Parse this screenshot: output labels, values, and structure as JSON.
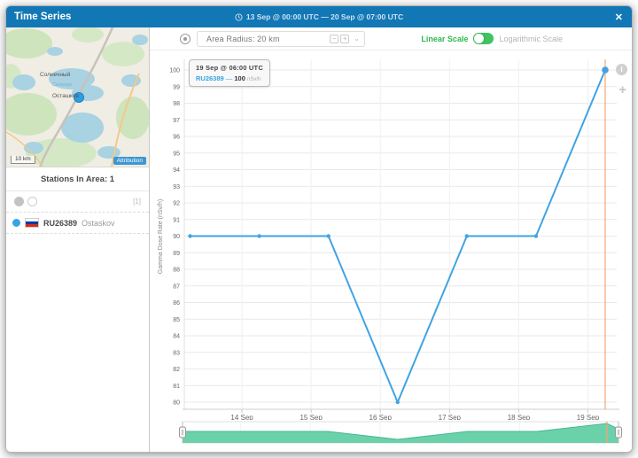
{
  "header": {
    "title": "Time Series",
    "date_range": "13 Sep @ 00:00 UTC  —  20 Sep @ 07:00 UTC",
    "close_label": "✕"
  },
  "toolbar": {
    "area_radius_label": "Area Radius: 20 km",
    "minus_label": "−",
    "plus_label": "+",
    "chevron_label": "⌄",
    "linear_scale_label": "Linear Scale",
    "log_scale_label": "Logarithmic Scale"
  },
  "map": {
    "scale_label": "10 km",
    "attribution_label": "Attribution",
    "labels": [
      "Солнечный",
      "Осташков",
      "Селигер"
    ]
  },
  "stations": {
    "heading": "Stations In Area: 1",
    "count_badge": "[1]",
    "items": [
      {
        "id": "RU26389",
        "name": "Ostaskov"
      }
    ]
  },
  "tooltip": {
    "title": "19 Sep @ 06:00 UTC",
    "station": "RU26389",
    "separator": "—",
    "value": "100",
    "unit": "nSv/h"
  },
  "chart_buttons": {
    "info": "i",
    "zoom_in": "+"
  },
  "colors": {
    "header_blue": "#1277b5",
    "series_blue": "#41a3e3",
    "plotline_orange": "#f8a470",
    "navigator_green_fill": "#63cfa6",
    "navigator_green_stroke": "#46b890",
    "toggle_green": "#3fc45f"
  },
  "chart_data": {
    "type": "line",
    "title": "",
    "xlabel": "",
    "ylabel": "Gamma Dose Rate (nSv/h)",
    "ylim": [
      80,
      100
    ],
    "y_tick_step": 1,
    "grid": true,
    "x_domain_hours": [
      4,
      154
    ],
    "x_ticks": [
      {
        "hour": 24,
        "label": "14 Sep"
      },
      {
        "hour": 48,
        "label": "15 Sep"
      },
      {
        "hour": 72,
        "label": "16 Sep"
      },
      {
        "hour": 96,
        "label": "17 Sep"
      },
      {
        "hour": 120,
        "label": "18 Sep"
      },
      {
        "hour": 144,
        "label": "19 Sep"
      }
    ],
    "series": [
      {
        "name": "RU26389",
        "color": "#41a3e3",
        "x_hours": [
          6,
          30,
          54,
          78,
          102,
          126,
          150
        ],
        "values": [
          90,
          90,
          90,
          80,
          90,
          90,
          100
        ]
      }
    ],
    "hover_point": {
      "hour": 150,
      "value": 100
    },
    "plotline_hour": 150,
    "navigator": {
      "points": [
        [
          4,
          90
        ],
        [
          6,
          90
        ],
        [
          30,
          90
        ],
        [
          54,
          90
        ],
        [
          78,
          80
        ],
        [
          102,
          90
        ],
        [
          126,
          90
        ],
        [
          150,
          100
        ],
        [
          154,
          93
        ]
      ],
      "tick_hour": 150
    }
  }
}
